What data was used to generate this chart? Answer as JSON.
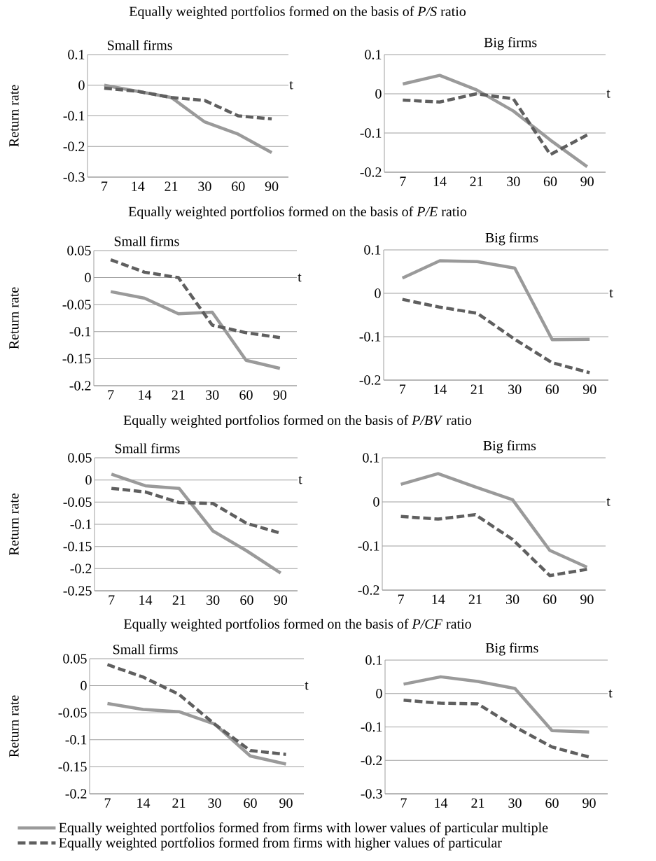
{
  "chart_data": [
    {
      "type": "line",
      "subtitle": "Equally weighted portfolios formed on the basis of *P/S* ratio",
      "title": "Small firms",
      "ylabel": "Return rate",
      "xlabel": "t",
      "categories": [
        "7",
        "14",
        "21",
        "30",
        "60",
        "90"
      ],
      "ylim": [
        -0.3,
        0.1
      ],
      "yticks": [
        -0.3,
        -0.2,
        -0.1,
        0,
        0.1
      ],
      "grid": "y",
      "series": [
        {
          "color": "#9a9a9a",
          "line_style": "solid",
          "values": [
            0.0,
            -0.02,
            -0.04,
            -0.12,
            -0.16,
            -0.22
          ]
        },
        {
          "color": "#5f5f5f",
          "line_style": "dashed",
          "values": [
            -0.01,
            -0.02,
            -0.04,
            -0.05,
            -0.1,
            -0.11
          ]
        }
      ]
    },
    {
      "type": "line",
      "title": "Big firms",
      "xlabel": "t",
      "categories": [
        "7",
        "14",
        "21",
        "30",
        "60",
        "90"
      ],
      "ylim": [
        -0.2,
        0.1
      ],
      "yticks": [
        -0.2,
        -0.1,
        0,
        0.1
      ],
      "grid": "y",
      "series": [
        {
          "color": "#9a9a9a",
          "line_style": "solid",
          "values": [
            0.025,
            0.047,
            0.01,
            -0.044,
            -0.118,
            -0.186
          ]
        },
        {
          "color": "#5f5f5f",
          "line_style": "dashed",
          "values": [
            -0.016,
            -0.021,
            0.0,
            -0.013,
            -0.155,
            -0.105
          ]
        }
      ]
    },
    {
      "type": "line",
      "subtitle": "Equally weighted portfolios formed on the basis of *P/E* ratio",
      "title": "Small firms",
      "ylabel": "Return rate",
      "xlabel": "t",
      "categories": [
        "7",
        "14",
        "21",
        "30",
        "60",
        "90"
      ],
      "ylim": [
        -0.2,
        0.05
      ],
      "yticks": [
        -0.2,
        -0.15,
        -0.1,
        -0.05,
        0,
        0.05
      ],
      "grid": "y",
      "series": [
        {
          "color": "#9a9a9a",
          "line_style": "solid",
          "values": [
            -0.026,
            -0.038,
            -0.067,
            -0.064,
            -0.153,
            -0.168
          ]
        },
        {
          "color": "#5f5f5f",
          "line_style": "dashed",
          "values": [
            0.033,
            0.01,
            0.0,
            -0.088,
            -0.102,
            -0.111
          ]
        }
      ]
    },
    {
      "type": "line",
      "title": "Big firms",
      "xlabel": "t",
      "categories": [
        "7",
        "14",
        "21",
        "30",
        "60",
        "90"
      ],
      "ylim": [
        -0.2,
        0.1
      ],
      "yticks": [
        -0.2,
        -0.1,
        0,
        0.1
      ],
      "grid": "y",
      "series": [
        {
          "color": "#9a9a9a",
          "line_style": "solid",
          "values": [
            0.035,
            0.075,
            0.073,
            0.058,
            -0.107,
            -0.106
          ]
        },
        {
          "color": "#5f5f5f",
          "line_style": "dashed",
          "values": [
            -0.014,
            -0.032,
            -0.046,
            -0.106,
            -0.16,
            -0.183
          ]
        }
      ]
    },
    {
      "type": "line",
      "subtitle": "Equally weighted portfolios formed on the basis of *P/BV* ratio",
      "title": "Small firms",
      "ylabel": "Return rate",
      "xlabel": "t",
      "categories": [
        "7",
        "14",
        "21",
        "30",
        "60",
        "90"
      ],
      "ylim": [
        -0.25,
        0.05
      ],
      "yticks": [
        -0.25,
        -0.2,
        -0.15,
        -0.1,
        -0.05,
        0,
        0.05
      ],
      "grid": "y",
      "series": [
        {
          "color": "#9a9a9a",
          "line_style": "solid",
          "values": [
            0.013,
            -0.013,
            -0.019,
            -0.115,
            -0.16,
            -0.21
          ]
        },
        {
          "color": "#5f5f5f",
          "line_style": "dashed",
          "values": [
            -0.019,
            -0.027,
            -0.051,
            -0.053,
            -0.098,
            -0.12
          ]
        }
      ]
    },
    {
      "type": "line",
      "title": "Big firms",
      "xlabel": "t",
      "categories": [
        "7",
        "14",
        "21",
        "30",
        "60",
        "90"
      ],
      "ylim": [
        -0.2,
        0.1
      ],
      "yticks": [
        -0.2,
        -0.1,
        0,
        0.1
      ],
      "grid": "y",
      "series": [
        {
          "color": "#9a9a9a",
          "line_style": "solid",
          "values": [
            0.04,
            0.064,
            0.034,
            0.005,
            -0.11,
            -0.148
          ]
        },
        {
          "color": "#5f5f5f",
          "line_style": "dashed",
          "values": [
            -0.033,
            -0.039,
            -0.029,
            -0.085,
            -0.167,
            -0.153
          ]
        }
      ]
    },
    {
      "type": "line",
      "subtitle": "Equally weighted portfolios formed on the basis of *P/CF* ratio",
      "title": "Small firms",
      "ylabel": "Return rate",
      "xlabel": "t",
      "categories": [
        "7",
        "14",
        "21",
        "30",
        "60",
        "90"
      ],
      "ylim": [
        -0.2,
        0.05
      ],
      "yticks": [
        -0.2,
        -0.15,
        -0.1,
        -0.05,
        0,
        0.05
      ],
      "grid": "y",
      "legend": "bottom",
      "series": [
        {
          "name": "Equally weighted portfolios formed from firms with lower values of particular multiple",
          "color": "#9a9a9a",
          "line_style": "solid",
          "values": [
            -0.033,
            -0.044,
            -0.048,
            -0.071,
            -0.13,
            -0.145
          ]
        },
        {
          "name": "Equally weighted portfolios formed from firms with higher values of particular",
          "color": "#5f5f5f",
          "line_style": "dashed",
          "values": [
            0.039,
            0.016,
            -0.016,
            -0.071,
            -0.12,
            -0.127
          ]
        }
      ]
    },
    {
      "type": "line",
      "title": "Big firms",
      "xlabel": "t",
      "categories": [
        "7",
        "14",
        "21",
        "30",
        "60",
        "90"
      ],
      "ylim": [
        -0.3,
        0.1
      ],
      "yticks": [
        -0.3,
        -0.2,
        -0.1,
        0,
        0.1
      ],
      "grid": "y",
      "series": [
        {
          "color": "#9a9a9a",
          "line_style": "solid",
          "values": [
            0.028,
            0.05,
            0.036,
            0.015,
            -0.111,
            -0.115
          ]
        },
        {
          "color": "#5f5f5f",
          "line_style": "dashed",
          "values": [
            -0.02,
            -0.029,
            -0.031,
            -0.1,
            -0.16,
            -0.19
          ]
        }
      ]
    }
  ]
}
